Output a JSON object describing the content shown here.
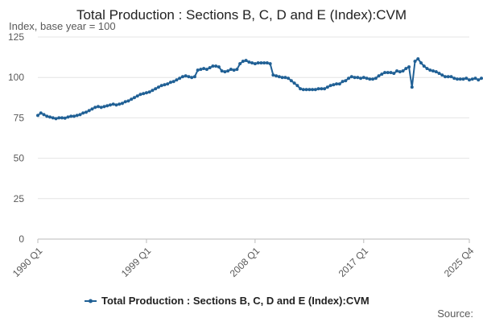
{
  "chart_data": {
    "type": "line",
    "title": "Total Production : Sections B, C, D and E (Index):CVM",
    "subtitle": "Index, base year = 100",
    "ylabel": "Index, base year = 100",
    "xlabel": "",
    "ylim": [
      0,
      125
    ],
    "yticks": [
      0,
      25,
      50,
      75,
      100,
      125
    ],
    "grid": true,
    "legend_position": "bottom",
    "x_range": [
      0,
      143
    ],
    "x_tick_labels": [
      {
        "index": 0,
        "label": "1990 Q1"
      },
      {
        "index": 36,
        "label": "1999 Q1"
      },
      {
        "index": 72,
        "label": "2008 Q1"
      },
      {
        "index": 108,
        "label": "2017 Q1"
      },
      {
        "index": 143,
        "label": "2025 Q4"
      }
    ],
    "series": [
      {
        "name": "Total Production : Sections B, C, D and E (Index):CVM",
        "color": "#206095",
        "values": [
          76.5,
          78.0,
          77.0,
          76.0,
          75.5,
          75.0,
          74.5,
          75.0,
          75.0,
          74.8,
          75.5,
          76.0,
          76.0,
          76.5,
          77.0,
          78.0,
          78.5,
          79.5,
          80.5,
          81.5,
          82.0,
          81.5,
          82.0,
          82.5,
          83.0,
          83.5,
          83.0,
          83.5,
          84.0,
          85.0,
          85.5,
          86.5,
          87.5,
          88.5,
          89.5,
          90.0,
          90.5,
          91.0,
          92.0,
          93.0,
          94.0,
          95.0,
          95.5,
          96.0,
          97.0,
          97.5,
          98.5,
          99.5,
          100.5,
          101.0,
          100.5,
          100.0,
          100.5,
          104.5,
          105.0,
          105.5,
          105.0,
          106.0,
          107.0,
          107.0,
          106.5,
          104.0,
          103.5,
          104.0,
          105.0,
          104.5,
          105.0,
          108.5,
          110.0,
          110.5,
          109.5,
          109.0,
          108.5,
          109.0,
          109.0,
          109.0,
          109.0,
          108.5,
          101.5,
          101.0,
          100.5,
          100.0,
          100.0,
          99.5,
          98.0,
          96.5,
          95.0,
          93.0,
          92.5,
          92.5,
          92.5,
          92.5,
          92.5,
          93.0,
          93.0,
          93.0,
          94.0,
          95.0,
          95.5,
          96.0,
          96.0,
          97.5,
          98.0,
          99.5,
          100.5,
          100.0,
          100.0,
          99.5,
          100.0,
          99.5,
          99.0,
          99.0,
          99.5,
          101.0,
          102.0,
          103.0,
          103.0,
          103.0,
          102.5,
          104.0,
          103.5,
          104.0,
          105.5,
          106.5,
          94.0,
          110.0,
          111.5,
          109.0,
          107.0,
          105.5,
          104.5,
          104.0,
          103.5,
          102.5,
          101.5,
          100.5,
          100.5,
          100.5,
          99.5,
          99.0,
          99.0,
          99.0,
          99.5,
          98.5,
          99.0,
          99.5,
          98.5,
          99.5
        ]
      }
    ]
  },
  "footer": {
    "source_label": "Source:"
  }
}
